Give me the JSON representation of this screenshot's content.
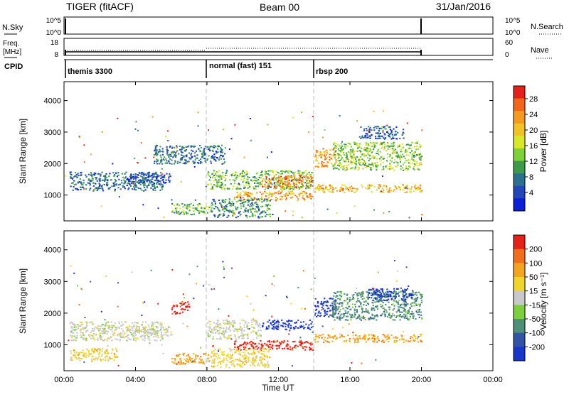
{
  "header": {
    "title": "TIGER (fitACF)",
    "beam": "Beam 00",
    "date": "31/Jan/2016"
  },
  "panels": {
    "nsky": {
      "label": "N.Sky",
      "ticks": [
        "10^5",
        "10^0"
      ],
      "right_ticks": [
        "10^5",
        "10^0"
      ],
      "right_label": "N.Search"
    },
    "freq": {
      "label_line1": "Freq.",
      "label_line2": "[MHz]",
      "ticks": [
        "18",
        "8"
      ],
      "right_ticks": [
        "60",
        "0"
      ],
      "right_label": "Nave"
    },
    "cpid": {
      "label": "CPID",
      "segments": [
        "themis 3300",
        "normal (fast) 151",
        "rbsp 200"
      ]
    }
  },
  "chart_data": [
    {
      "type": "heatmap",
      "title": "",
      "xlabel": "Time UT",
      "ylabel": "Slant Range [km]",
      "x_ticks": [
        "00:00",
        "04:00",
        "08:00",
        "12:00",
        "16:00",
        "20:00",
        "00:00"
      ],
      "xlim_hours": [
        0,
        24
      ],
      "y_ticks": [
        "4000",
        "3000",
        "2000",
        "1000"
      ],
      "ylim_km": [
        180,
        4600
      ],
      "colorbar": {
        "label": "Power [dB]",
        "ticks": [
          "28",
          "24",
          "20",
          "16",
          "12",
          "8",
          "4"
        ],
        "range": [
          0,
          30
        ],
        "colors": [
          "#0a1fd6",
          "#2347b7",
          "#2c6f8e",
          "#3f9b4a",
          "#7fd13a",
          "#d8e72a",
          "#f1c22a",
          "#f39a21",
          "#f1681c",
          "#e3231b"
        ]
      },
      "echo_regions": [
        {
          "t": [
            0.3,
            5.5
          ],
          "r": [
            1150,
            1750
          ],
          "level": 7
        },
        {
          "t": [
            3.5,
            6.0
          ],
          "r": [
            1400,
            1700
          ],
          "level": 4
        },
        {
          "t": [
            6.0,
            8.2
          ],
          "r": [
            400,
            750
          ],
          "level": 12
        },
        {
          "t": [
            8.0,
            13.9
          ],
          "r": [
            1200,
            1800
          ],
          "level": 13
        },
        {
          "t": [
            11.0,
            13.9
          ],
          "r": [
            1250,
            1650
          ],
          "level": 24
        },
        {
          "t": [
            9.5,
            13.9
          ],
          "r": [
            850,
            1150
          ],
          "level": 21
        },
        {
          "t": [
            8.2,
            11.5
          ],
          "r": [
            300,
            900
          ],
          "level": 9
        },
        {
          "t": [
            5.0,
            9.0
          ],
          "r": [
            2000,
            2600
          ],
          "level": 7
        },
        {
          "t": [
            14.0,
            20.0
          ],
          "r": [
            1100,
            1350
          ],
          "level": 20
        },
        {
          "t": [
            14.0,
            15.2
          ],
          "r": [
            1900,
            2500
          ],
          "level": 22
        },
        {
          "t": [
            15.0,
            20.0
          ],
          "r": [
            1800,
            2700
          ],
          "level": 14
        },
        {
          "t": [
            16.5,
            19.0
          ],
          "r": [
            2800,
            3200
          ],
          "level": 5
        }
      ]
    },
    {
      "type": "heatmap",
      "title": "",
      "xlabel": "Time UT",
      "ylabel": "Slant Range [km]",
      "x_ticks": [
        "00:00",
        "04:00",
        "08:00",
        "12:00",
        "16:00",
        "20:00",
        "00:00"
      ],
      "xlim_hours": [
        0,
        24
      ],
      "y_ticks": [
        "4000",
        "3000",
        "2000",
        "1000"
      ],
      "ylim_km": [
        180,
        4600
      ],
      "colorbar": {
        "label": "Velocity [m s⁻¹]",
        "ticks": [
          "200",
          "100",
          "50",
          "15",
          "-15",
          "-50",
          "-100",
          "-200"
        ],
        "colors": [
          "#1836c9",
          "#3353a4",
          "#4f8e78",
          "#7dcf3f",
          "#c9c9c9",
          "#f0d52d",
          "#f1a521",
          "#f06e1c",
          "#e3231b"
        ]
      },
      "echo_regions": [
        {
          "t": [
            0.3,
            5.5
          ],
          "r": [
            1150,
            1750
          ],
          "cat": 4
        },
        {
          "t": [
            0.3,
            3.0
          ],
          "r": [
            500,
            900
          ],
          "cat": 5
        },
        {
          "t": [
            3.5,
            6.0
          ],
          "r": [
            1300,
            1600
          ],
          "cat": 4
        },
        {
          "t": [
            6.0,
            8.2
          ],
          "r": [
            400,
            750
          ],
          "cat": 6
        },
        {
          "t": [
            8.0,
            11.0
          ],
          "r": [
            1200,
            1800
          ],
          "cat": 4
        },
        {
          "t": [
            11.0,
            13.9
          ],
          "r": [
            1500,
            1800
          ],
          "cat": 0
        },
        {
          "t": [
            9.5,
            13.9
          ],
          "r": [
            850,
            1150
          ],
          "cat": 8
        },
        {
          "t": [
            8.2,
            11.5
          ],
          "r": [
            300,
            900
          ],
          "cat": 5
        },
        {
          "t": [
            6.0,
            7.0
          ],
          "r": [
            2000,
            2400
          ],
          "cat": 8
        },
        {
          "t": [
            14.0,
            20.0
          ],
          "r": [
            1100,
            1350
          ],
          "cat": 6
        },
        {
          "t": [
            14.0,
            15.2
          ],
          "r": [
            1900,
            2500
          ],
          "cat": 0
        },
        {
          "t": [
            15.0,
            20.0
          ],
          "r": [
            1800,
            2700
          ],
          "cat": 2
        },
        {
          "t": [
            17.0,
            19.5
          ],
          "r": [
            2400,
            2800
          ],
          "cat": 0
        }
      ]
    }
  ]
}
